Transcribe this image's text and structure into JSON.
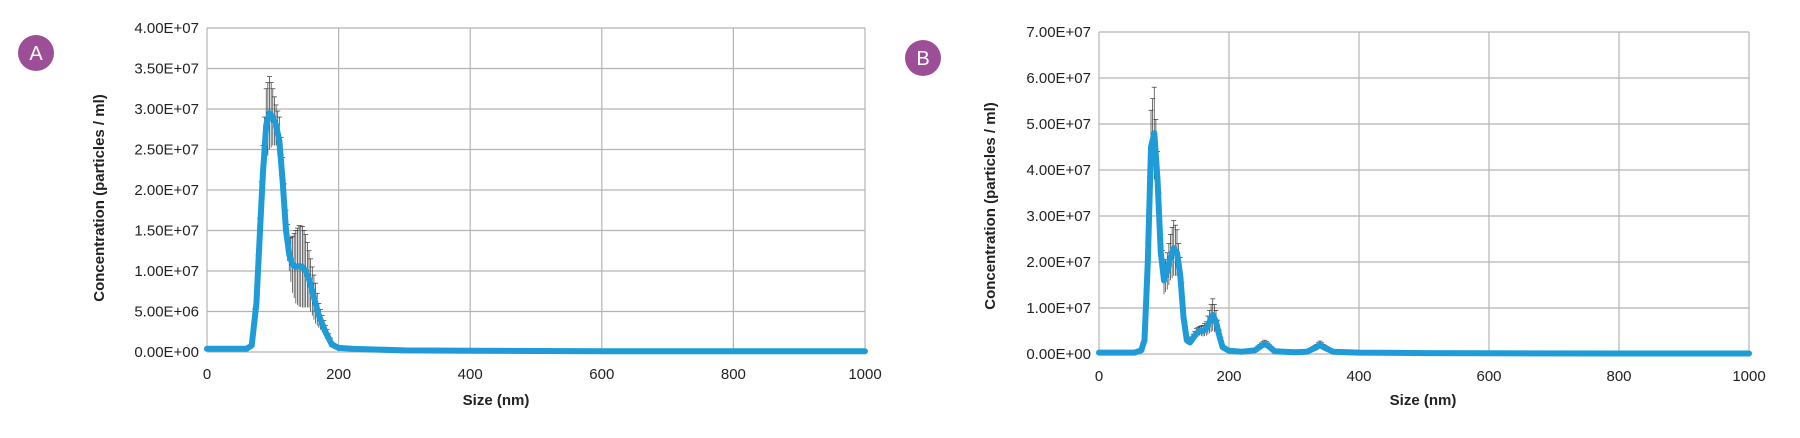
{
  "colors": {
    "series": "#1f9bd7",
    "error_bars": "#333333",
    "grid": "#b3b3b3",
    "badge": "#9c4e97"
  },
  "chart_data": [
    {
      "panel": "A",
      "type": "line",
      "xlabel": "Size (nm)",
      "ylabel": "Concentration (particles / ml)",
      "xlim": [
        0,
        1000
      ],
      "ylim": [
        0,
        40000000
      ],
      "xticks": [
        "0",
        "200",
        "400",
        "600",
        "800",
        "1000"
      ],
      "yticks": [
        "0.00E+00",
        "5.00E+06",
        "1.00E+07",
        "1.50E+07",
        "2.00E+07",
        "2.50E+07",
        "3.00E+07",
        "3.50E+07",
        "4.00E+07"
      ],
      "grid": true,
      "legend": "none",
      "series": [
        {
          "x": [
            0,
            60,
            68,
            75,
            80,
            85,
            90,
            95,
            100,
            105,
            110,
            115,
            120,
            125,
            130,
            135,
            140,
            145,
            150,
            155,
            160,
            165,
            170,
            175,
            180,
            190,
            200,
            220,
            260,
            300,
            400,
            600,
            800,
            1000
          ],
          "y": [
            400000,
            400000,
            800000,
            6000000,
            14000000,
            22000000,
            28000000,
            29500000,
            29000000,
            28000000,
            26000000,
            21000000,
            15000000,
            12000000,
            10800000,
            10500000,
            10600000,
            10500000,
            10000000,
            9000000,
            7500000,
            6000000,
            4500000,
            3500000,
            2500000,
            900000,
            500000,
            400000,
            300000,
            200000,
            150000,
            100000,
            100000,
            100000
          ],
          "err": [
            0,
            0,
            200000,
            1500000,
            2500000,
            3500000,
            4500000,
            4500000,
            3500000,
            2500000,
            3000000,
            3000000,
            2500000,
            2000000,
            3500000,
            4500000,
            5000000,
            5000000,
            4500000,
            3500000,
            3000000,
            2500000,
            1500000,
            1000000,
            800000,
            300000,
            100000,
            80000,
            50000,
            40000,
            30000,
            20000,
            20000,
            20000
          ]
        }
      ]
    },
    {
      "panel": "B",
      "type": "line",
      "xlabel": "Size (nm)",
      "ylabel": "Concentration (particles / ml)",
      "xlim": [
        0,
        1000
      ],
      "ylim": [
        0,
        70000000
      ],
      "xticks": [
        "0",
        "200",
        "400",
        "600",
        "800",
        "1000"
      ],
      "yticks": [
        "0.00E+00",
        "1.00E+07",
        "2.00E+07",
        "3.00E+07",
        "4.00E+07",
        "5.00E+07",
        "6.00E+07",
        "7.00E+07"
      ],
      "grid": true,
      "legend": "none",
      "series": [
        {
          "x": [
            0,
            55,
            65,
            70,
            75,
            80,
            85,
            90,
            95,
            100,
            105,
            110,
            115,
            120,
            125,
            130,
            135,
            140,
            145,
            150,
            155,
            160,
            165,
            170,
            175,
            180,
            185,
            190,
            200,
            220,
            240,
            250,
            255,
            260,
            270,
            300,
            320,
            335,
            340,
            345,
            360,
            400,
            500,
            600,
            800,
            1000
          ],
          "y": [
            300000,
            300000,
            800000,
            3000000,
            20000000,
            45000000,
            48000000,
            38000000,
            22000000,
            16000000,
            18000000,
            21000000,
            23000000,
            22000000,
            17000000,
            8000000,
            3000000,
            2500000,
            3500000,
            4500000,
            5000000,
            5000000,
            5500000,
            7000000,
            8500000,
            7000000,
            4000000,
            1500000,
            700000,
            500000,
            800000,
            1800000,
            2200000,
            1800000,
            600000,
            400000,
            500000,
            1500000,
            2000000,
            1500000,
            500000,
            300000,
            200000,
            150000,
            100000,
            100000
          ],
          "err": [
            0,
            0,
            200000,
            1000000,
            4000000,
            8000000,
            10000000,
            6000000,
            4000000,
            3000000,
            4000000,
            5000000,
            6000000,
            5000000,
            4000000,
            2000000,
            800000,
            600000,
            800000,
            1000000,
            1000000,
            1200000,
            1500000,
            2500000,
            3500000,
            2500000,
            1200000,
            500000,
            200000,
            150000,
            300000,
            600000,
            800000,
            600000,
            200000,
            100000,
            200000,
            600000,
            800000,
            600000,
            200000,
            80000,
            50000,
            40000,
            30000,
            30000
          ]
        }
      ]
    }
  ]
}
